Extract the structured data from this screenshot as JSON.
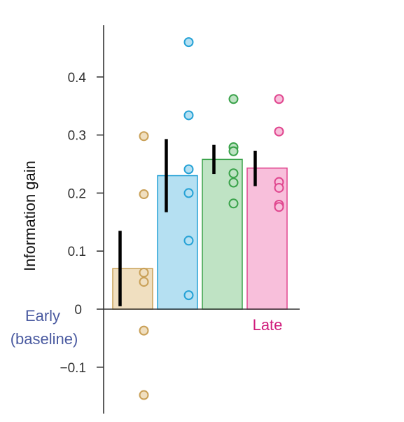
{
  "chart_data": {
    "type": "bar",
    "ylabel": "Information gain",
    "ylim": [
      -0.17,
      0.48
    ],
    "yticks": [
      -0.1,
      0,
      0.1,
      0.2,
      0.3,
      0.4
    ],
    "ytick_labels": [
      "−0.1",
      "0",
      "0.1",
      "0.2",
      "0.3",
      "0.4"
    ],
    "grid": false,
    "annotations": {
      "early": {
        "line1": "Early",
        "line2": "(baseline)",
        "color": "#4a5aa0"
      },
      "late": {
        "text": "Late",
        "color": "#d01c7c"
      }
    },
    "bars": [
      {
        "value": 0.07,
        "err_low": 0.005,
        "err_high": 0.135,
        "fill": "#f0dfc0",
        "stroke": "#c9a057",
        "points": [
          0.298,
          0.198,
          0.063,
          0.047,
          -0.037,
          -0.148
        ]
      },
      {
        "value": 0.23,
        "err_low": 0.167,
        "err_high": 0.293,
        "fill": "#b5e0f2",
        "stroke": "#26a2d6",
        "points": [
          0.46,
          0.334,
          0.241,
          0.2,
          0.118,
          0.024
        ]
      },
      {
        "value": 0.258,
        "err_low": 0.233,
        "err_high": 0.283,
        "fill": "#bfe3c4",
        "stroke": "#3aa24a",
        "points": [
          0.362,
          0.279,
          0.272,
          0.234,
          0.218,
          0.182
        ]
      },
      {
        "value": 0.243,
        "err_low": 0.212,
        "err_high": 0.273,
        "fill": "#f8bfdb",
        "stroke": "#e0478f",
        "points": [
          0.362,
          0.306,
          0.219,
          0.209,
          0.18,
          0.176
        ]
      }
    ]
  }
}
